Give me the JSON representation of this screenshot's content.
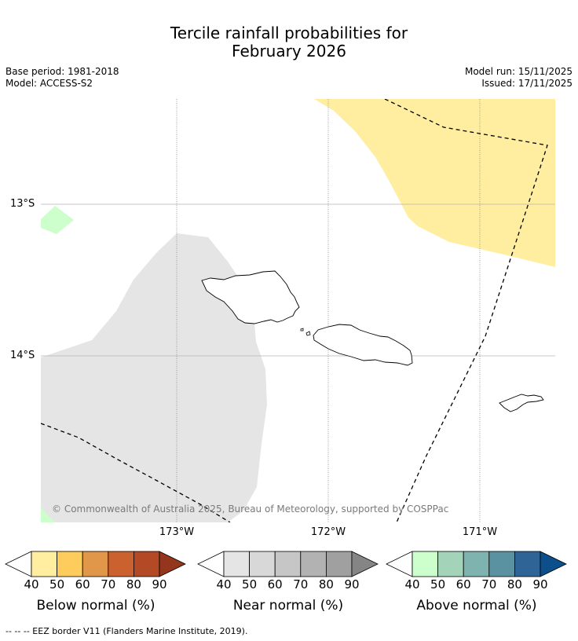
{
  "title_line1": "Tercile rainfall probabilities for",
  "title_line2": "February 2026",
  "meta": {
    "base_period": "Base period: 1981-2018",
    "model": "Model: ACCESS-S2",
    "model_run": "Model run: 15/11/2025",
    "issued": "Issued: 17/11/2025"
  },
  "map": {
    "lat_labels": [
      "13°S",
      "14°S"
    ],
    "lon_labels": [
      "173°W",
      "172°W",
      "171°W"
    ],
    "copyright": "© Commonwealth of Australia 2025, Bureau of Meteorology, supported by COSPPac",
    "colors": {
      "below_50": "#ffeda0",
      "near_40": "#e5e5e5",
      "above_40": "#ccffcc"
    }
  },
  "colorbars": [
    {
      "label": "Below normal (%)",
      "ticks": [
        "40",
        "50",
        "60",
        "70",
        "80",
        "90"
      ],
      "colors": [
        "#ffeda0",
        "#fecc5c",
        "#e1974a",
        "#cc6130",
        "#b34a25",
        "#94361d"
      ]
    },
    {
      "label": "Near normal (%)",
      "ticks": [
        "40",
        "50",
        "60",
        "70",
        "80",
        "90"
      ],
      "colors": [
        "#e5e5e5",
        "#d8d8d8",
        "#c6c6c6",
        "#b2b2b2",
        "#a0a0a0",
        "#858585"
      ]
    },
    {
      "label": "Above normal (%)",
      "ticks": [
        "40",
        "50",
        "60",
        "70",
        "80",
        "90"
      ],
      "colors": [
        "#ccffcc",
        "#a3d4ba",
        "#7eb3b0",
        "#5b92a1",
        "#2f6496",
        "#0d4f8b"
      ]
    }
  ],
  "footnote": "-- -- -- EEZ border V11 (Flanders Marine Institute, 2019)."
}
